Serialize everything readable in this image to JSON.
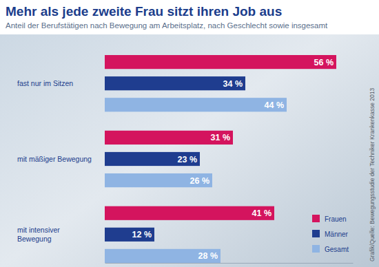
{
  "chart_data": {
    "type": "bar",
    "orientation": "horizontal",
    "title": "Mehr als jede zweite Frau sitzt ihren Job aus",
    "subtitle": "Anteil der Berufstätigen nach Bewegung am Arbeitsplatz, nach Geschlecht sowie insgesamt",
    "source": "Grafik/Quelle: Bewegungsstudie der Techniker Krankenkasse 2013",
    "categories": [
      "fast nur im Sitzen",
      "mit mäßiger Bewegung",
      "mit intensiver Bewegung"
    ],
    "series": [
      {
        "name": "Frauen",
        "color": "#d4145e",
        "values": [
          56,
          31,
          41
        ],
        "value_labels": [
          "56 %",
          "31 %",
          "41 %"
        ]
      },
      {
        "name": "Männer",
        "color": "#1f3d8f",
        "values": [
          34,
          23,
          12
        ],
        "value_labels": [
          "34 %",
          "23 %",
          "12 %"
        ]
      },
      {
        "name": "Gesamt",
        "color": "#8fb4e3",
        "values": [
          44,
          26,
          28
        ],
        "value_labels": [
          "44 %",
          "26 %",
          "28 %"
        ]
      }
    ],
    "xlim": [
      0,
      60
    ],
    "xticks": [],
    "tick_labels": false,
    "grid": false,
    "data_labels": true,
    "legend": "lower right"
  }
}
